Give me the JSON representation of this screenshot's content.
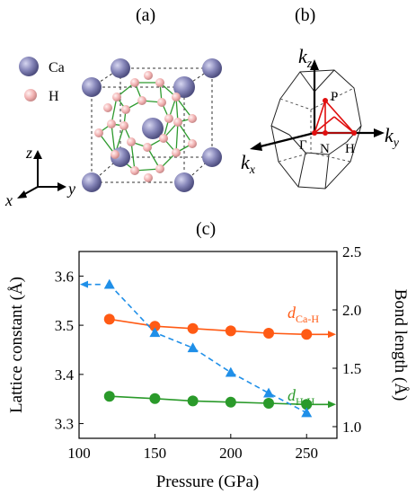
{
  "panel_a": {
    "label": "(a)",
    "legend": [
      {
        "symbol": "Ca",
        "color": "#8585b8"
      },
      {
        "symbol": "H",
        "color": "#f2b3b3"
      }
    ],
    "axes": {
      "z": "z",
      "x": "x",
      "y": "y"
    }
  },
  "panel_b": {
    "label": "(b)",
    "axis_labels": {
      "kz": "k",
      "kz_sub": "z",
      "kx": "k",
      "kx_sub": "x",
      "ky": "k",
      "ky_sub": "y"
    },
    "points": {
      "P": "P",
      "Gamma": "Γ",
      "N": "N",
      "H": "H"
    }
  },
  "panel_c": {
    "label": "(c)"
  },
  "chart_data": {
    "type": "line",
    "xlabel": "Pressure (GPa)",
    "ylabel": "Lattice constant (Å)",
    "y2label": "Bond length (Å)",
    "xlim": [
      100,
      270
    ],
    "ylim": [
      3.27,
      3.65
    ],
    "y2lim": [
      0.9,
      2.5
    ],
    "xticks": [
      "100",
      "150",
      "200",
      "250"
    ],
    "xtick_values": [
      100,
      150,
      200,
      250
    ],
    "yticks": [
      "3.3",
      "3.4",
      "3.5",
      "3.6"
    ],
    "ytick_values": [
      3.3,
      3.4,
      3.5,
      3.6
    ],
    "y2ticks": [
      "1.0",
      "1.5",
      "2.0",
      "2.5"
    ],
    "y2tick_values": [
      1.0,
      1.5,
      2.0,
      2.5
    ],
    "series": [
      {
        "name": "d",
        "sub": "Ca-H",
        "axis": "right",
        "color": "#ff5a14",
        "marker": "circle",
        "x": [
          120,
          150,
          175,
          200,
          225,
          250
        ],
        "y": [
          1.92,
          1.86,
          1.84,
          1.82,
          1.8,
          1.79
        ]
      },
      {
        "name": "d",
        "sub": "H-H",
        "axis": "right",
        "color": "#2a9a2a",
        "marker": "circle",
        "x": [
          120,
          150,
          175,
          200,
          225,
          250
        ],
        "y": [
          1.26,
          1.24,
          1.22,
          1.21,
          1.2,
          1.19
        ]
      },
      {
        "axis": "left",
        "color": "#1f8fe8",
        "marker": "triangle",
        "dashed": true,
        "x": [
          120,
          150,
          175,
          200,
          225,
          250
        ],
        "y": [
          3.583,
          3.485,
          3.454,
          3.404,
          3.362,
          3.322
        ]
      }
    ]
  }
}
